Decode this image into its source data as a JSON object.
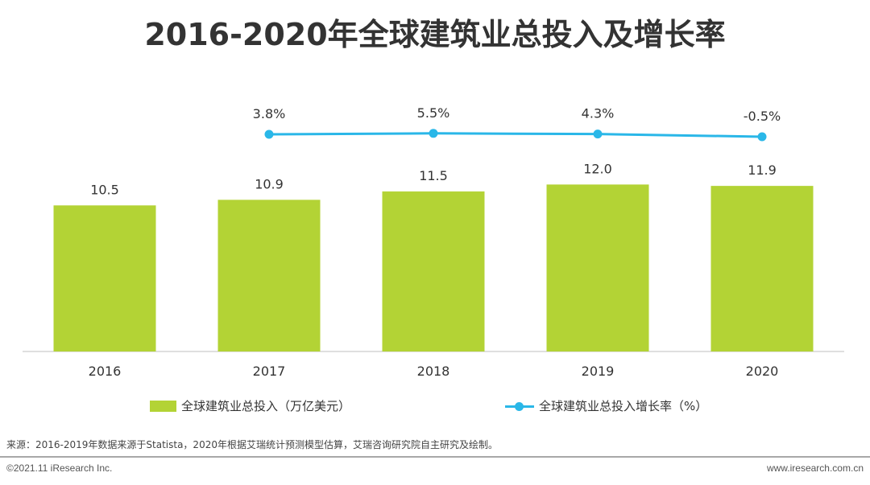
{
  "title": "2016-2020年全球建筑业总投入及增长率",
  "chart_data": {
    "type": "bar",
    "categories": [
      "2016",
      "2017",
      "2018",
      "2019",
      "2020"
    ],
    "series": [
      {
        "name": "全球建筑业总投入（万亿美元）",
        "type": "bar",
        "values": [
          10.5,
          10.9,
          11.5,
          12.0,
          11.9
        ],
        "labels": [
          "10.5",
          "10.9",
          "11.5",
          "12.0",
          "11.9"
        ],
        "color": "#b3d335"
      },
      {
        "name": "全球建筑业总投入增长率（%）",
        "type": "line",
        "values": [
          null,
          3.8,
          5.5,
          4.3,
          -0.5
        ],
        "labels": [
          "",
          "3.8%",
          "5.5%",
          "4.3%",
          "-0.5%"
        ],
        "color": "#2ab7e8"
      }
    ],
    "ylim": [
      0,
      13
    ]
  },
  "legend": {
    "bar_label": "全球建筑业总投入（万亿美元）",
    "line_label": "全球建筑业总投入增长率（%）"
  },
  "footer": {
    "source": "来源：2016-2019年数据来源于Statista，2020年根据艾瑞统计预测模型估算，艾瑞咨询研究院自主研究及绘制。",
    "copyright": "©2021.11 iResearch Inc.",
    "website": "www.iresearch.com.cn"
  }
}
